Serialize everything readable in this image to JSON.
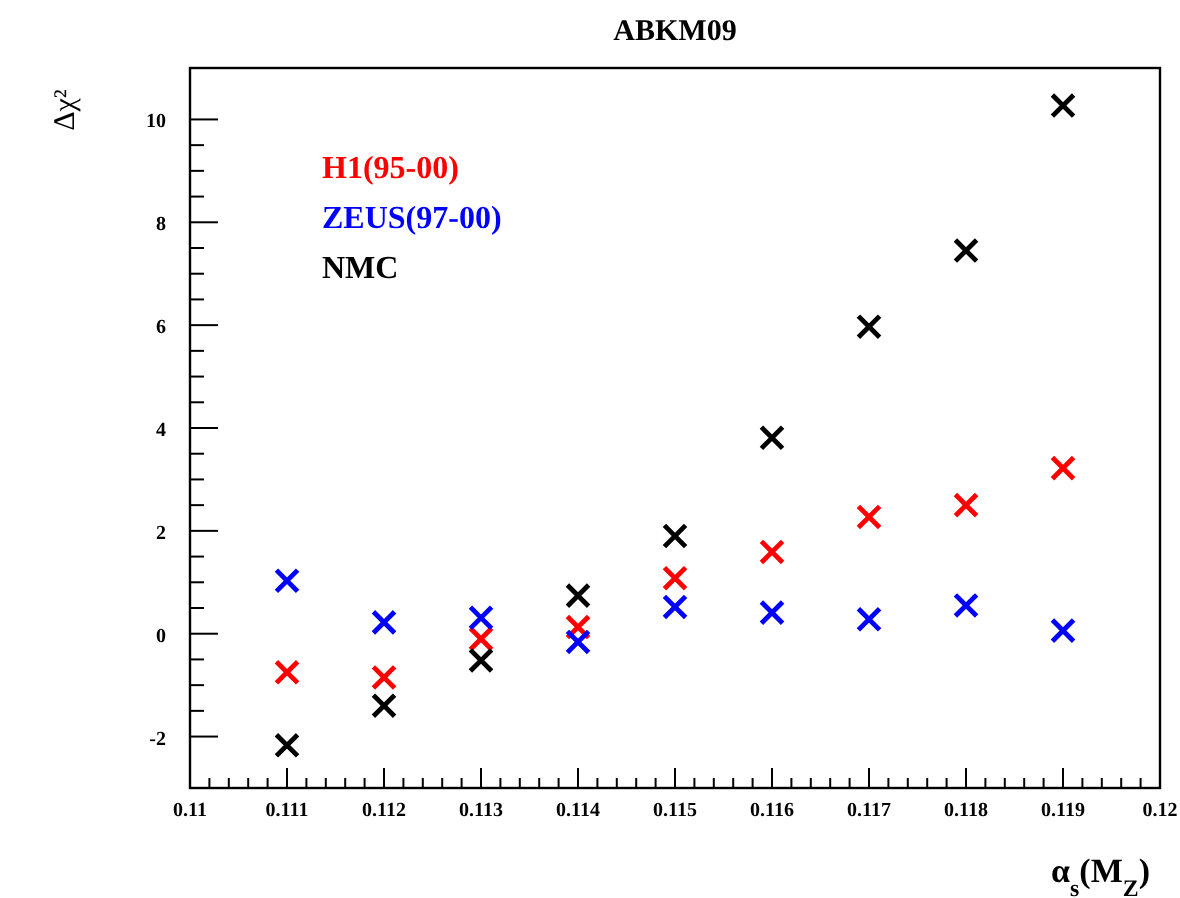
{
  "chart_data": {
    "type": "scatter",
    "title": "ABKM09",
    "xlabel": "α$_{s}$(M$_{Z}$)",
    "ylabel": "Δχ²",
    "x": [
      0.111,
      0.112,
      0.113,
      0.114,
      0.115,
      0.116,
      0.117,
      0.118,
      0.119
    ],
    "series": [
      {
        "name": "H1(95-00)",
        "color": "#ff0000",
        "values": [
          -0.75,
          -0.85,
          -0.1,
          0.13,
          1.08,
          1.59,
          2.27,
          2.5,
          3.22
        ]
      },
      {
        "name": "ZEUS(97-00)",
        "color": "#0000ff",
        "values": [
          1.03,
          0.22,
          0.31,
          -0.16,
          0.52,
          0.41,
          0.28,
          0.55,
          0.06
        ]
      },
      {
        "name": "NMC",
        "color": "#000000",
        "values": [
          -2.17,
          -1.4,
          -0.52,
          0.74,
          1.9,
          3.81,
          5.97,
          7.45,
          10.27
        ]
      }
    ],
    "xlim": [
      0.11,
      0.12
    ],
    "xticks": [
      0.11,
      0.111,
      0.112,
      0.113,
      0.114,
      0.115,
      0.116,
      0.117,
      0.118,
      0.119,
      0.12
    ],
    "ylim": [
      -3,
      11
    ],
    "yticks": [
      -2,
      0,
      2,
      4,
      6,
      8,
      10
    ],
    "marker": "cross",
    "grid": false
  }
}
